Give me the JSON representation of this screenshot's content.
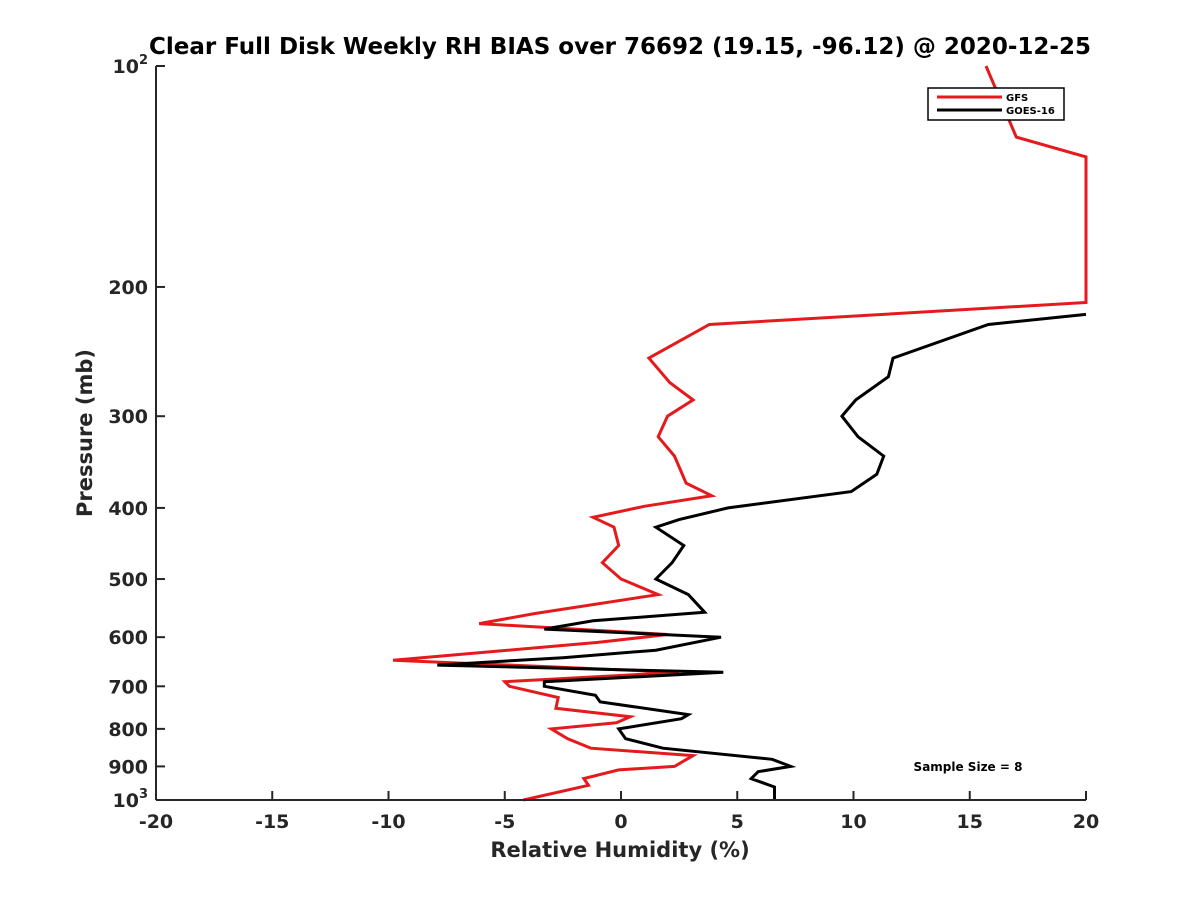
{
  "chart_data": {
    "type": "line",
    "title": "Clear Full Disk Weekly RH BIAS over 76692 (19.15, -96.12) @ 2020-12-25",
    "xlabel": "Relative Humidity (%)",
    "ylabel": "Pressure (mb)",
    "xlim": [
      -20,
      20
    ],
    "ylim": [
      100,
      1000
    ],
    "y_scale": "log",
    "y_reversed": true,
    "xticks": [
      "-20",
      "-15",
      "-10",
      "-5",
      "0",
      "5",
      "10",
      "15",
      "20"
    ],
    "yticks": [
      {
        "value": 100,
        "base": "10",
        "exp": "2"
      },
      {
        "value": 200,
        "label": "200"
      },
      {
        "value": 300,
        "label": "300"
      },
      {
        "value": 400,
        "label": "400"
      },
      {
        "value": 500,
        "label": "500"
      },
      {
        "value": 600,
        "label": "600"
      },
      {
        "value": 700,
        "label": "700"
      },
      {
        "value": 800,
        "label": "800"
      },
      {
        "value": 900,
        "label": "900"
      },
      {
        "value": 1000,
        "base": "10",
        "exp": "3"
      }
    ],
    "legend_position": "top-right",
    "annotation": "Sample Size = 8",
    "series": [
      {
        "name": "GFS",
        "color": "#e41a1c",
        "points": [
          [
            15.7,
            100
          ],
          [
            17.0,
            125
          ],
          [
            20.0,
            133
          ],
          [
            20.0,
            210
          ],
          [
            3.8,
            225
          ],
          [
            1.2,
            250
          ],
          [
            2.1,
            270
          ],
          [
            3.1,
            285
          ],
          [
            2.0,
            300
          ],
          [
            1.6,
            320
          ],
          [
            2.3,
            340
          ],
          [
            2.8,
            370
          ],
          [
            3.9,
            385
          ],
          [
            1.0,
            398
          ],
          [
            -1.2,
            412
          ],
          [
            -0.3,
            425
          ],
          [
            -0.1,
            450
          ],
          [
            -0.8,
            475
          ],
          [
            0.0,
            500
          ],
          [
            1.6,
            525
          ],
          [
            -3.7,
            557
          ],
          [
            -6.1,
            575
          ],
          [
            2.0,
            595
          ],
          [
            -1.0,
            610
          ],
          [
            -9.8,
            645
          ],
          [
            2.5,
            670
          ],
          [
            -5.0,
            690
          ],
          [
            -4.8,
            700
          ],
          [
            -2.7,
            725
          ],
          [
            -2.8,
            750
          ],
          [
            0.4,
            770
          ],
          [
            -0.2,
            785
          ],
          [
            -3.0,
            800
          ],
          [
            -2.3,
            825
          ],
          [
            -1.3,
            850
          ],
          [
            3.1,
            870
          ],
          [
            2.3,
            900
          ],
          [
            -0.1,
            910
          ],
          [
            -1.6,
            935
          ],
          [
            -1.4,
            955
          ],
          [
            -4.2,
            1000
          ]
        ]
      },
      {
        "name": "GOES-16",
        "color": "#000000",
        "points": [
          [
            20.0,
            218
          ],
          [
            15.8,
            225
          ],
          [
            11.7,
            250
          ],
          [
            11.5,
            265
          ],
          [
            10.1,
            285
          ],
          [
            9.5,
            300
          ],
          [
            10.2,
            320
          ],
          [
            11.3,
            340
          ],
          [
            11.0,
            360
          ],
          [
            9.9,
            380
          ],
          [
            4.6,
            400
          ],
          [
            2.5,
            415
          ],
          [
            1.5,
            425
          ],
          [
            2.7,
            450
          ],
          [
            2.2,
            475
          ],
          [
            1.5,
            500
          ],
          [
            2.9,
            525
          ],
          [
            3.6,
            555
          ],
          [
            -1.2,
            570
          ],
          [
            -3.3,
            585
          ],
          [
            4.3,
            600
          ],
          [
            1.5,
            625
          ],
          [
            -2.5,
            640
          ],
          [
            -7.9,
            655
          ],
          [
            4.4,
            670
          ],
          [
            -3.3,
            690
          ],
          [
            -3.3,
            700
          ],
          [
            -1.1,
            720
          ],
          [
            -0.9,
            735
          ],
          [
            2.9,
            765
          ],
          [
            2.6,
            775
          ],
          [
            -0.1,
            800
          ],
          [
            0.2,
            825
          ],
          [
            1.8,
            850
          ],
          [
            6.5,
            880
          ],
          [
            7.3,
            900
          ],
          [
            5.9,
            915
          ],
          [
            5.6,
            935
          ],
          [
            6.6,
            960
          ],
          [
            6.6,
            1000
          ]
        ]
      }
    ]
  }
}
